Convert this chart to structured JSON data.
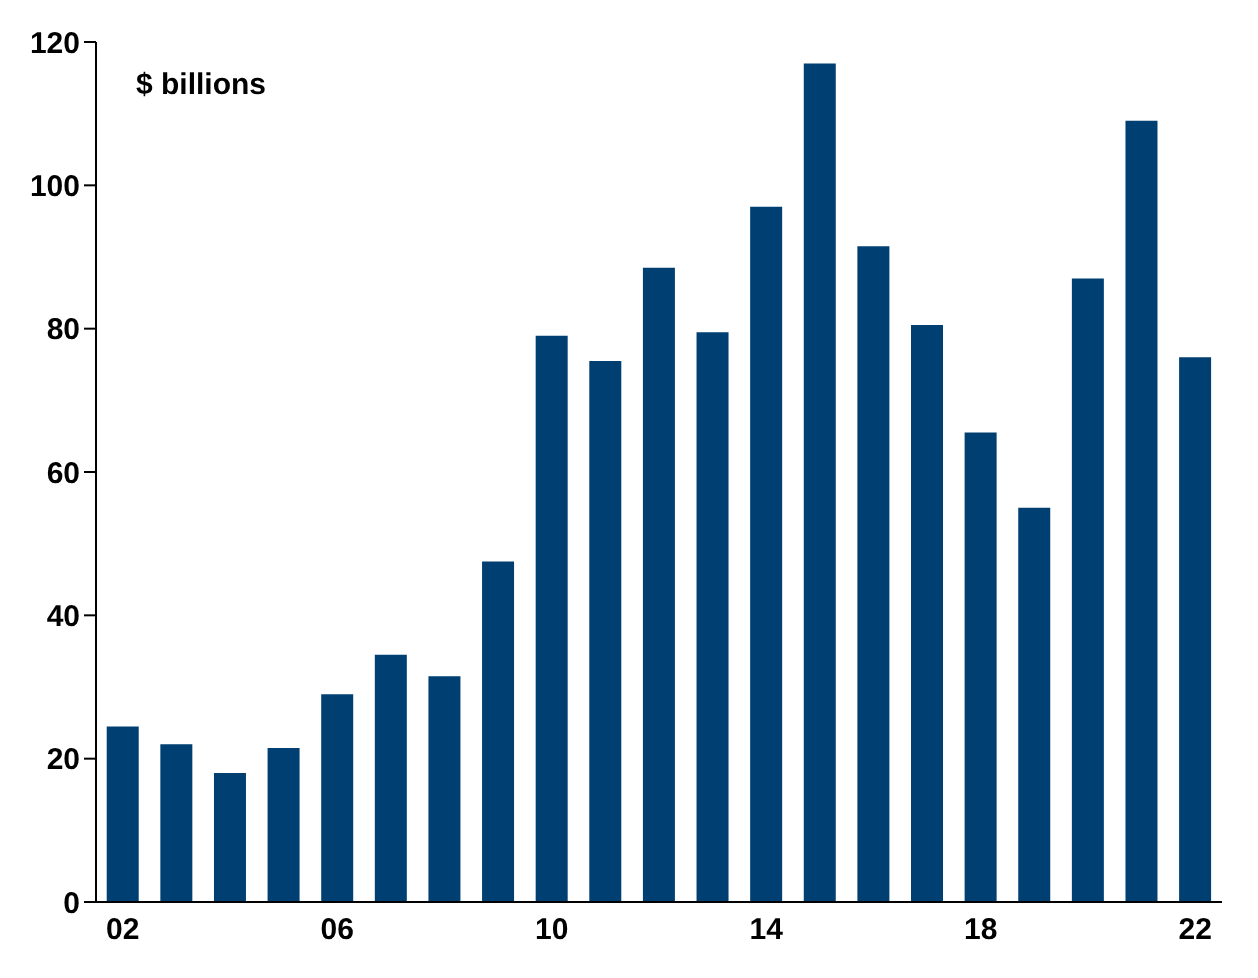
{
  "chart_data": {
    "type": "bar",
    "ylabel": "$ billions",
    "categories": [
      "02",
      null,
      null,
      null,
      "06",
      null,
      null,
      null,
      "10",
      null,
      null,
      null,
      "14",
      null,
      null,
      null,
      "18",
      null,
      null,
      null,
      "22"
    ],
    "values": [
      24.5,
      22,
      18,
      21.5,
      29,
      34.5,
      31.5,
      47.5,
      79,
      75.5,
      88.5,
      79.5,
      97,
      117,
      91.5,
      80.5,
      65.5,
      55,
      87,
      109,
      76
    ],
    "color": "#003f72",
    "ylim": [
      0,
      120
    ],
    "yticks": [
      0,
      20,
      40,
      60,
      80,
      100,
      120
    ],
    "grid": false
  }
}
